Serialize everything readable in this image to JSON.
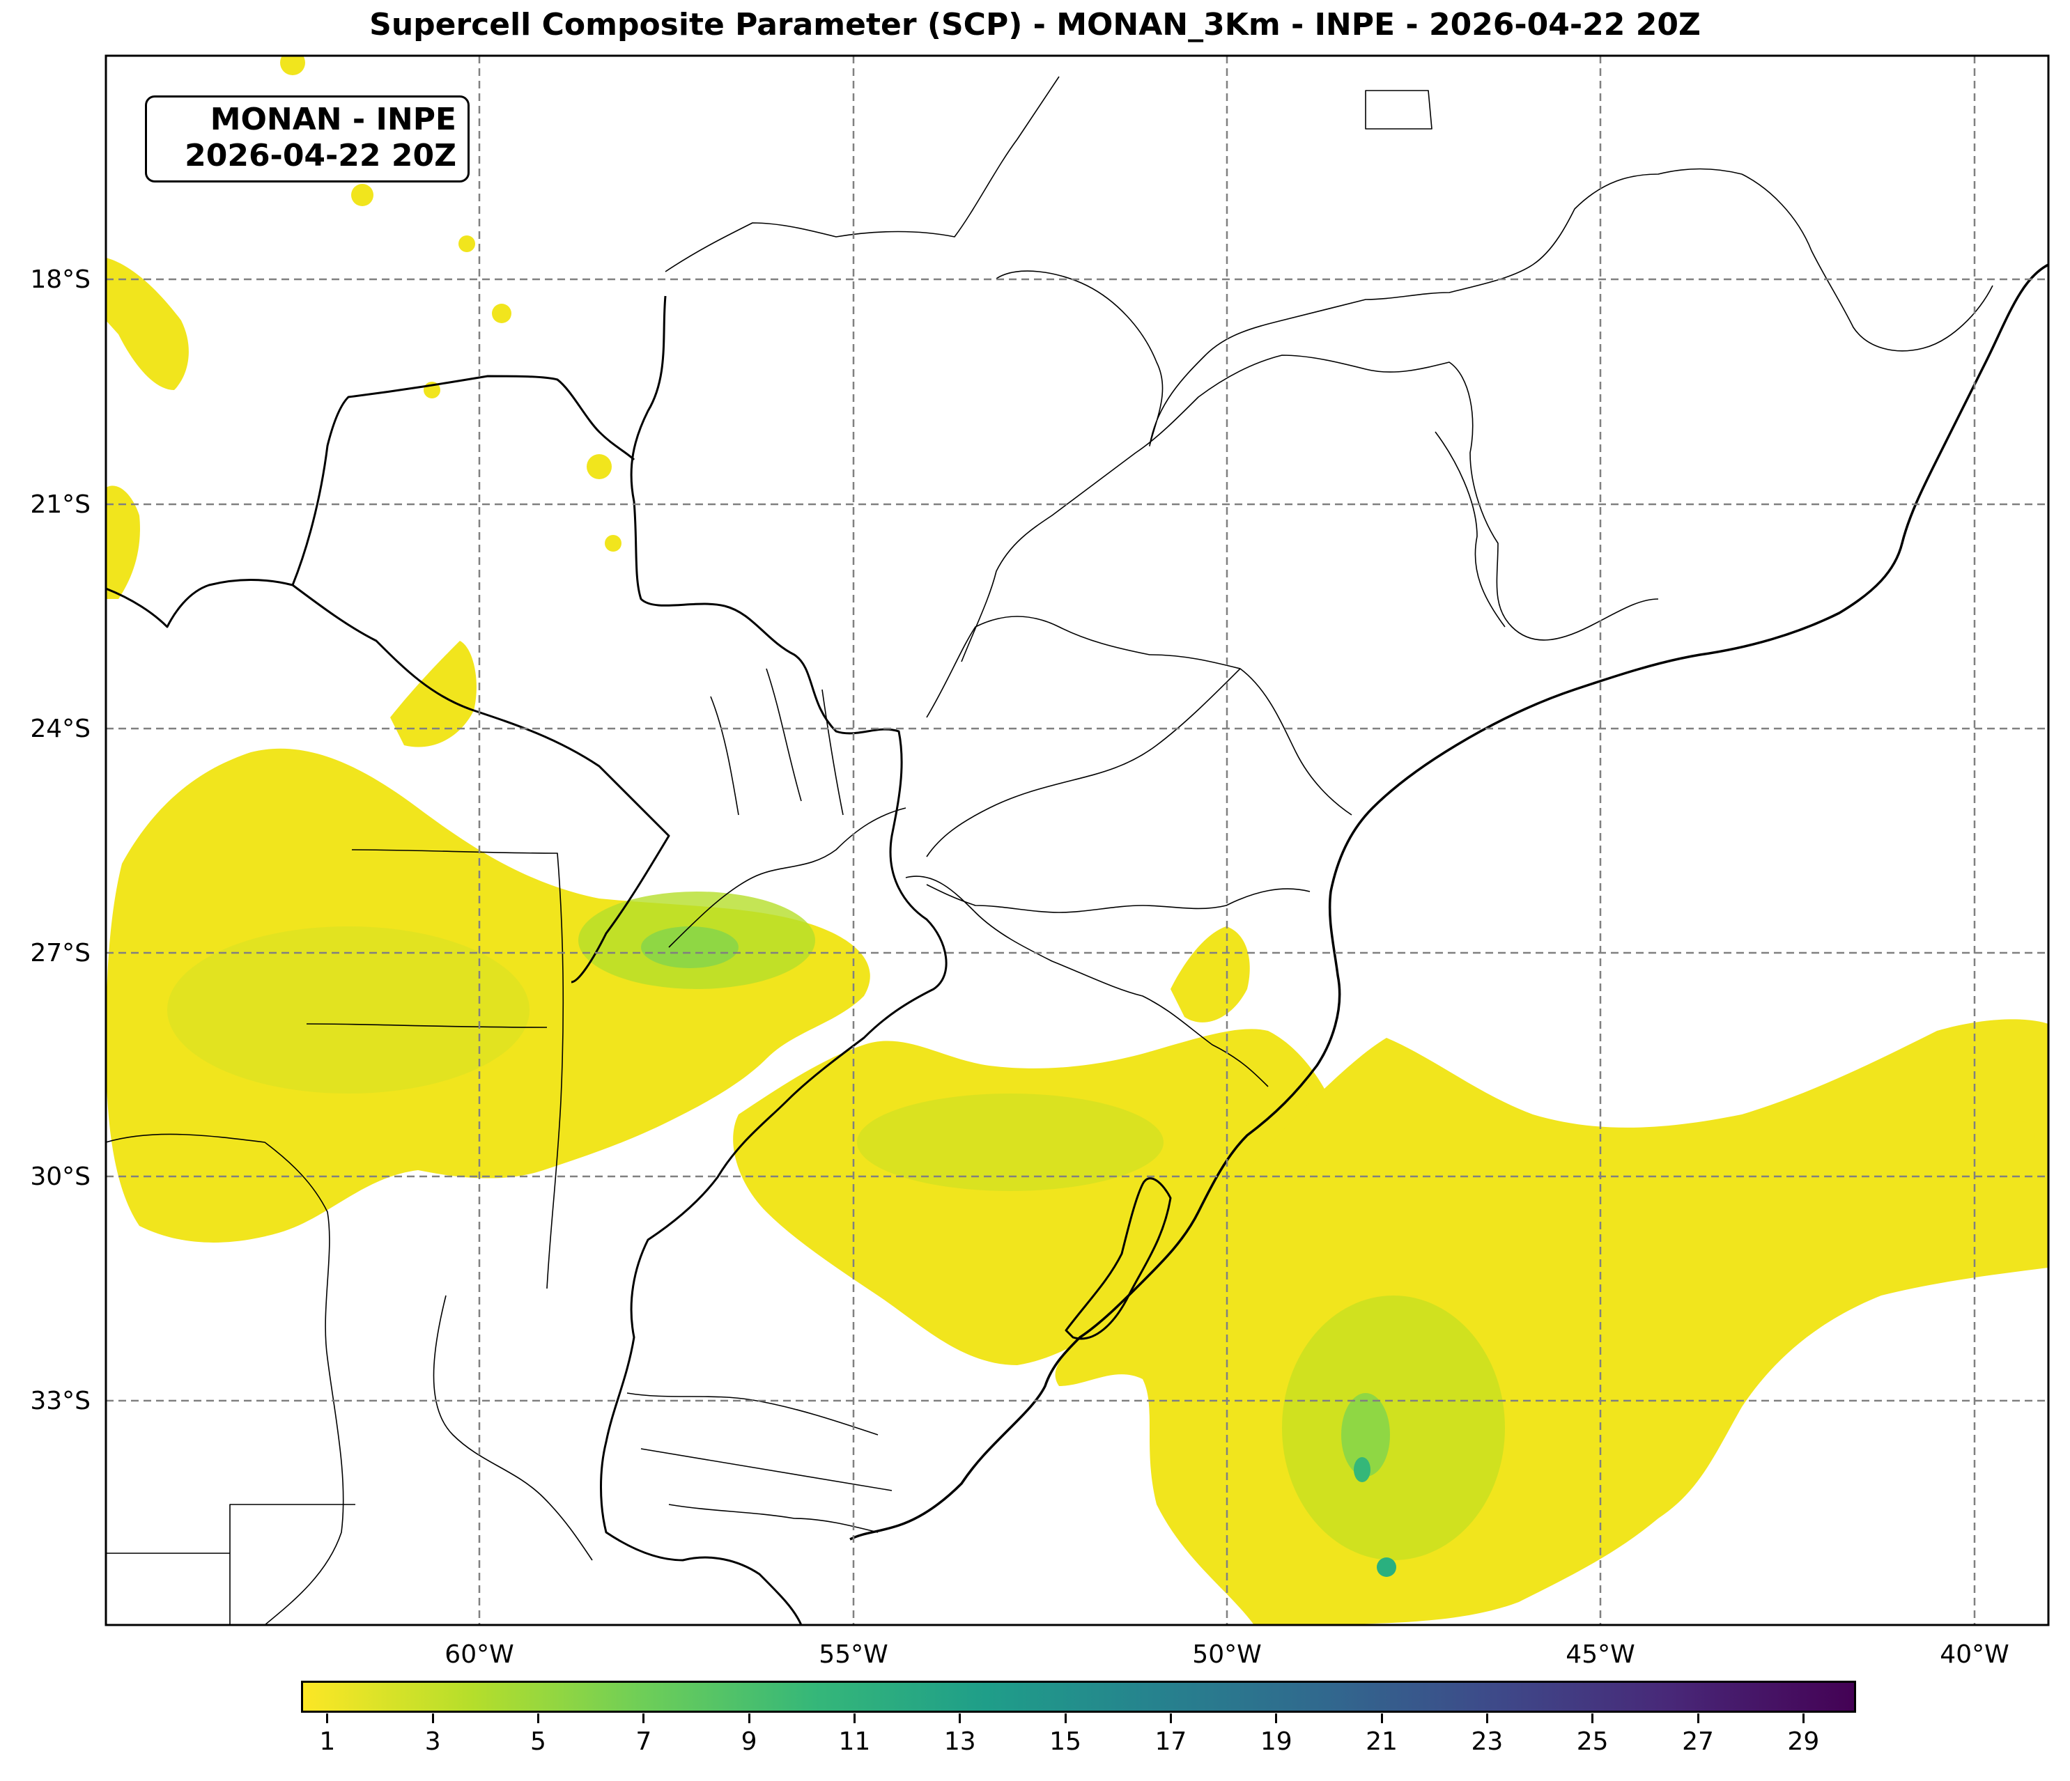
{
  "title": "Supercell Composite Parameter (SCP) - MONAN_3Km - INPE - 2026-04-22 20Z",
  "info_box": {
    "line1": "MONAN - INPE",
    "line2": "2026-04-22 20Z"
  },
  "map": {
    "lon_range": [
      -65,
      -39
    ],
    "lat_range": [
      -37,
      -15
    ],
    "lon_ticks": [
      {
        "value": -60,
        "label": "60°W"
      },
      {
        "value": -55,
        "label": "55°W"
      },
      {
        "value": -50,
        "label": "50°W"
      },
      {
        "value": -45,
        "label": "45°W"
      },
      {
        "value": -40,
        "label": "40°W"
      }
    ],
    "lat_ticks": [
      {
        "value": -18,
        "label": "18°S"
      },
      {
        "value": -21,
        "label": "21°S"
      },
      {
        "value": -24,
        "label": "24°S"
      },
      {
        "value": -27,
        "label": "27°S"
      },
      {
        "value": -30,
        "label": "30°S"
      },
      {
        "value": -33,
        "label": "33°S"
      }
    ],
    "gridlines": "dashed",
    "grid_color": "#808080"
  },
  "colorbar": {
    "colormap": "viridis_r",
    "range": [
      0.5,
      30
    ],
    "ticks": [
      "1",
      "3",
      "5",
      "7",
      "9",
      "11",
      "13",
      "15",
      "17",
      "19",
      "21",
      "23",
      "25",
      "27",
      "29"
    ],
    "colors": [
      "#fde725",
      "#b5de2b",
      "#6ece58",
      "#35b779",
      "#1f9e89",
      "#26828e",
      "#31688e",
      "#3e4989",
      "#482878",
      "#440154"
    ]
  },
  "fill_colors": {
    "low": "#f1e51d",
    "mid": "#c8e020",
    "high": "#8fd744",
    "peak": "#2ab07f"
  }
}
